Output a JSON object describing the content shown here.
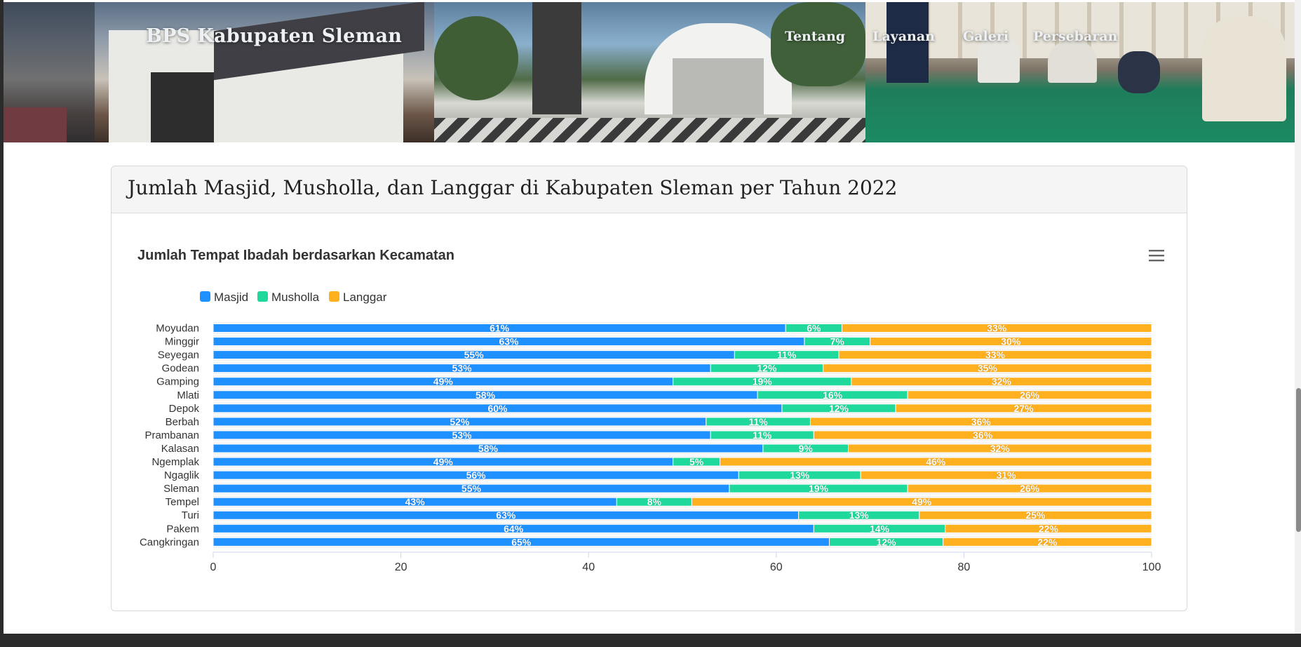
{
  "header": {
    "brand": "BPS Kabupaten Sleman",
    "nav": [
      "Tentang",
      "Layanan",
      "Galeri",
      "Persebaran"
    ]
  },
  "card": {
    "title": "Jumlah Masjid, Musholla, dan Langgar di Kabupaten Sleman per Tahun 2022"
  },
  "colors": {
    "Masjid": "#1e90ff",
    "Musholla": "#1ed99b",
    "Langgar": "#ffb01f"
  },
  "chart_data": {
    "type": "bar",
    "orientation": "horizontal",
    "stacking": "percent",
    "title": "Jumlah Tempat Ibadah berdasarkan Kecamatan",
    "xlabel": "",
    "ylabel": "",
    "xlim": [
      0,
      100
    ],
    "ticks": [
      0,
      20,
      40,
      60,
      80,
      100
    ],
    "legend_position": "top-left",
    "categories": [
      "Moyudan",
      "Minggir",
      "Seyegan",
      "Godean",
      "Gamping",
      "Mlati",
      "Depok",
      "Berbah",
      "Prambanan",
      "Kalasan",
      "Ngemplak",
      "Ngaglik",
      "Sleman",
      "Tempel",
      "Turi",
      "Pakem",
      "Cangkringan"
    ],
    "series": [
      {
        "name": "Masjid",
        "values": [
          61,
          63,
          55,
          53,
          49,
          58,
          60,
          52,
          53,
          58,
          49,
          56,
          55,
          43,
          63,
          64,
          65
        ]
      },
      {
        "name": "Musholla",
        "values": [
          6,
          7,
          11,
          12,
          19,
          16,
          12,
          11,
          11,
          9,
          5,
          13,
          19,
          8,
          13,
          14,
          12
        ]
      },
      {
        "name": "Langgar",
        "values": [
          33,
          30,
          33,
          35,
          32,
          26,
          27,
          36,
          36,
          32,
          46,
          31,
          26,
          49,
          25,
          22,
          22
        ]
      }
    ]
  }
}
